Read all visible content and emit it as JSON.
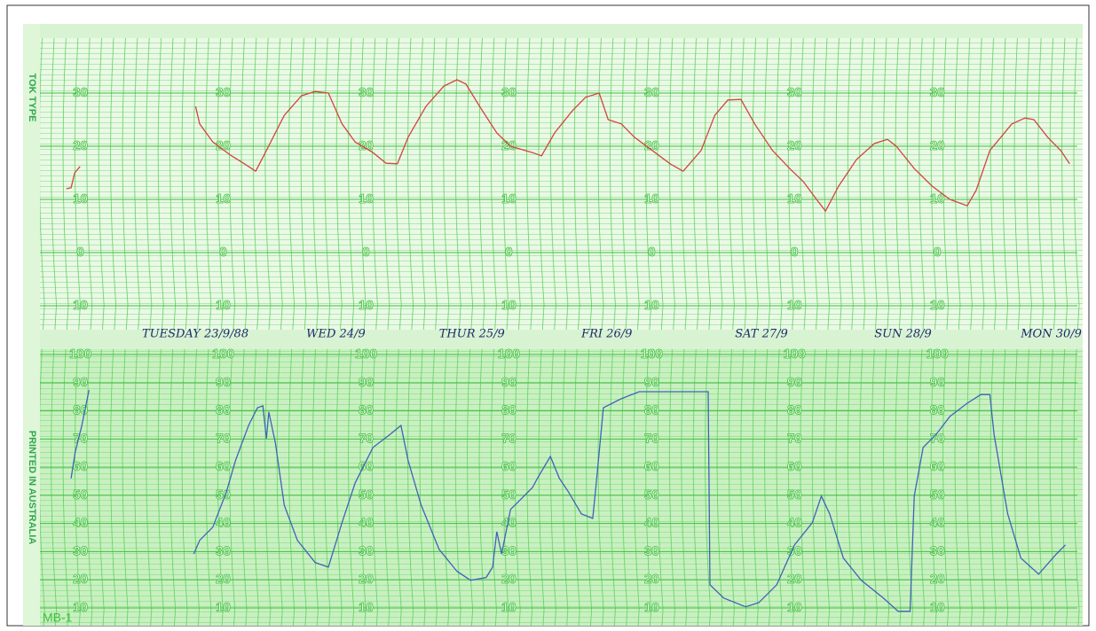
{
  "chart_data": [
    {
      "type": "line",
      "side_label": "TOK TYPE",
      "x": [
        2.2,
        3.0,
        3.6,
        4.5,
        null,
        23.9,
        24.6,
        26.8,
        29.8,
        32.1,
        34.0,
        35.8,
        38.8,
        41.7,
        44.0,
        46.2,
        48.5,
        50.7,
        53.7,
        55.9,
        57.8,
        59.6,
        62.6,
        65.6,
        67.8,
        69.3,
        71.6,
        74.5,
        76.8,
        80.5,
        82.0,
        84.2,
        87.2,
        89.4,
        91.7,
        93.2,
        95.4,
        97.6,
        100.6,
        103.6,
        105.8,
        108.8,
        111.1,
        113.3,
        115.5,
        117.8,
        120.8,
        123.7,
        126.0,
        128.2,
        129.7,
        131.9,
        134.9,
        137.9,
        140.1,
        141.6,
        144.6,
        147.6,
        150.6,
        153.5,
        155.0,
        157.3,
        161.0,
        163.2,
        164.7,
        167.0,
        169.2,
        170.7
      ],
      "series": [
        {
          "color": "#d2453f",
          "values": [
            12.0,
            12.2,
            15.0,
            16.2,
            null,
            27.5,
            24.2,
            20.8,
            18.3,
            16.7,
            15.3,
            19.2,
            25.8,
            29.5,
            30.3,
            30.0,
            24.2,
            20.8,
            18.8,
            16.8,
            16.7,
            21.7,
            27.5,
            31.3,
            32.5,
            31.7,
            27.5,
            22.5,
            20.0,
            18.8,
            18.2,
            22.5,
            26.7,
            29.2,
            30.0,
            25.0,
            24.2,
            21.7,
            19.2,
            16.7,
            15.3,
            19.2,
            25.8,
            28.7,
            28.8,
            24.2,
            19.2,
            15.8,
            13.3,
            10.0,
            7.8,
            12.5,
            17.5,
            20.5,
            21.3,
            20.0,
            15.8,
            12.5,
            10.0,
            8.8,
            11.7,
            19.2,
            24.2,
            25.3,
            25.0,
            21.7,
            19.2,
            16.7
          ]
        }
      ],
      "xlim": [
        0,
        172
      ],
      "ylim": [
        -14,
        43
      ],
      "yticks": [
        30,
        20,
        10,
        0,
        {
          "value": -10,
          "label": "10"
        }
      ]
    },
    {
      "type": "line",
      "side_label": "PRINTED IN AUSTRALIA",
      "form_label": "MB-1",
      "annotations": [
        {
          "text": "TUESDAY 23/9/88",
          "x": 14.9
        },
        {
          "text": "WED 24/9",
          "x": 42.5
        },
        {
          "text": "THUR 25/9",
          "x": 64.8
        },
        {
          "text": "FRI 26/9",
          "x": 88.7
        },
        {
          "text": "SAT 27/9",
          "x": 114.5
        },
        {
          "text": "SUN 28/9",
          "x": 137.9
        },
        {
          "text": "MON 30/9",
          "x": 162.5
        }
      ],
      "x": [
        3.0,
        3.7,
        4.8,
        6.0,
        null,
        23.6,
        24.6,
        26.8,
        29.1,
        30.6,
        32.8,
        34.3,
        35.2,
        35.8,
        36.2,
        37.3,
        38.8,
        41.0,
        44.0,
        46.2,
        48.5,
        50.7,
        53.7,
        56.6,
        58.4,
        59.6,
        61.8,
        64.8,
        67.8,
        70.1,
        72.7,
        73.8,
        74.5,
        75.3,
        76.8,
        78.3,
        80.5,
        81.3,
        83.5,
        85.0,
        86.5,
        88.7,
        90.6,
        91.2,
        92.4,
        95.4,
        98.4,
        104.4,
        110.0,
        110.3,
        112.6,
        116.3,
        118.5,
        121.5,
        124.5,
        127.5,
        129.0,
        130.4,
        132.7,
        135.7,
        139.4,
        141.9,
        143.9,
        144.6,
        146.1,
        148.3,
        150.6,
        153.5,
        155.8,
        157.3,
        158.0,
        160.3,
        162.5,
        165.5,
        168.5,
        170.0
      ],
      "series": [
        {
          "color": "#3f63b8",
          "values": [
            56.0,
            65.4,
            74.8,
            87.4,
            null,
            29.2,
            34.0,
            38.7,
            51.3,
            62.3,
            74.8,
            81.1,
            81.8,
            70.1,
            79.6,
            68.6,
            46.5,
            34.0,
            26.1,
            24.5,
            40.3,
            54.4,
            67.0,
            71.7,
            74.8,
            62.3,
            46.5,
            30.8,
            23.0,
            19.8,
            20.8,
            24.5,
            37.1,
            29.2,
            45.0,
            48.1,
            52.8,
            56.0,
            63.8,
            56.0,
            51.3,
            43.4,
            41.8,
            54.4,
            81.1,
            84.3,
            86.8,
            86.8,
            86.8,
            18.2,
            13.5,
            10.4,
            11.9,
            18.2,
            32.4,
            40.3,
            49.7,
            43.4,
            27.7,
            19.8,
            13.5,
            8.8,
            8.8,
            49.7,
            67.0,
            71.7,
            78.0,
            82.7,
            85.8,
            85.8,
            71.7,
            43.4,
            27.7,
            22.0,
            29.2,
            32.4
          ]
        }
      ],
      "xlim": [
        0,
        172
      ],
      "ylim": [
        4,
        106
      ],
      "yticks": [
        100,
        90,
        80,
        70,
        60,
        50,
        40,
        30,
        20,
        10
      ]
    }
  ]
}
